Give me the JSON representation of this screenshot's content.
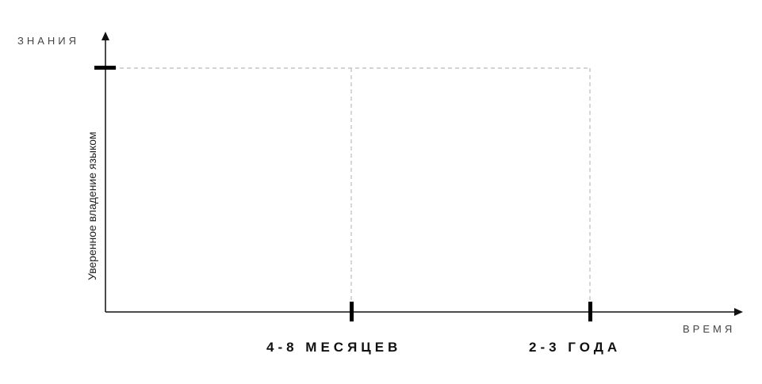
{
  "chart_data": {
    "type": "line",
    "ylabel": "ЗНАНИЯ",
    "xlabel": "ВРЕМЯ",
    "y_marker_label": "Уверенное владение языком",
    "x_ticks": [
      {
        "label": "4-8 МЕСЯЦЕВ"
      },
      {
        "label": "2-3 ГОДА"
      }
    ],
    "grid": "dashed guide lines from the level marker to each time mark",
    "colors": {
      "axis": "#111111",
      "guide": "#bbbbbb",
      "marker": "#000000"
    }
  }
}
